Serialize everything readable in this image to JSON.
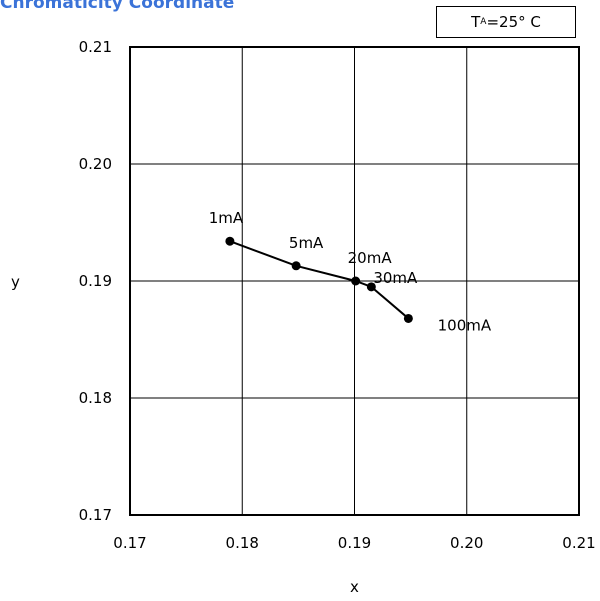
{
  "title": "Chromaticity Coordinate",
  "condition": {
    "symbol": "T",
    "subscript": "A",
    "value": "=25°  C"
  },
  "chart_data": {
    "type": "line",
    "xlabel": "x",
    "ylabel": "y",
    "xlim": [
      0.17,
      0.21
    ],
    "ylim": [
      0.17,
      0.21
    ],
    "x_ticks": [
      "0.17",
      "0.18",
      "0.19",
      "0.20",
      "0.21"
    ],
    "y_ticks": [
      "0.17",
      "0.18",
      "0.19",
      "0.20",
      "0.21"
    ],
    "grid": true,
    "series": [
      {
        "points": [
          {
            "label": "1mA",
            "x": 0.1789,
            "y": 0.1934
          },
          {
            "label": "5mA",
            "x": 0.1848,
            "y": 0.1913
          },
          {
            "label": "20mA",
            "x": 0.1901,
            "y": 0.19
          },
          {
            "label": "30mA",
            "x": 0.1915,
            "y": 0.1895
          },
          {
            "label": "100mA",
            "x": 0.1948,
            "y": 0.1868
          }
        ]
      }
    ]
  }
}
